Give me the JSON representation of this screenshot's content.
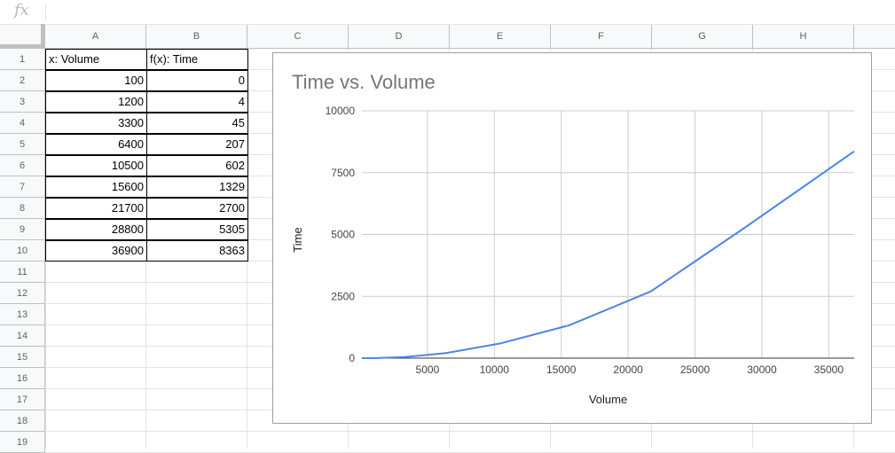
{
  "formula_bar": {
    "fx_label": "fx",
    "value": ""
  },
  "columns": [
    "A",
    "B",
    "C",
    "D",
    "E",
    "F",
    "G",
    "H"
  ],
  "rows": [
    "1",
    "2",
    "3",
    "4",
    "5",
    "6",
    "7",
    "8",
    "9",
    "10",
    "11",
    "12",
    "13",
    "14",
    "15",
    "16",
    "17",
    "18",
    "19"
  ],
  "headers": {
    "a": "x: Volume",
    "b": "f(x): Time"
  },
  "table": [
    {
      "x": "100",
      "y": "0"
    },
    {
      "x": "1200",
      "y": "4"
    },
    {
      "x": "3300",
      "y": "45"
    },
    {
      "x": "6400",
      "y": "207"
    },
    {
      "x": "10500",
      "y": "602"
    },
    {
      "x": "15600",
      "y": "1329"
    },
    {
      "x": "21700",
      "y": "2700"
    },
    {
      "x": "28800",
      "y": "5305"
    },
    {
      "x": "36900",
      "y": "8363"
    }
  ],
  "chart_data": {
    "type": "line",
    "title": "Time vs. Volume",
    "xlabel": "Volume",
    "ylabel": "Time",
    "x": [
      100,
      1200,
      3300,
      6400,
      10500,
      15600,
      21700,
      28800,
      36900
    ],
    "series": [
      {
        "values": [
          0,
          4,
          45,
          207,
          602,
          1329,
          2700,
          5305,
          8363
        ],
        "color": "#4a86e8"
      }
    ],
    "xlim": [
      100,
      36900
    ],
    "ylim": [
      0,
      10000
    ],
    "xticks": [
      5000,
      10000,
      15000,
      20000,
      25000,
      30000,
      35000
    ],
    "yticks": [
      0,
      2500,
      5000,
      7500,
      10000
    ],
    "xtick_labels": [
      "5000",
      "10000",
      "15000",
      "20000",
      "25000",
      "30000",
      "35000"
    ],
    "ytick_labels": [
      "0",
      "2500",
      "5000",
      "7500",
      "10000"
    ],
    "grid": true,
    "legend": "none"
  }
}
